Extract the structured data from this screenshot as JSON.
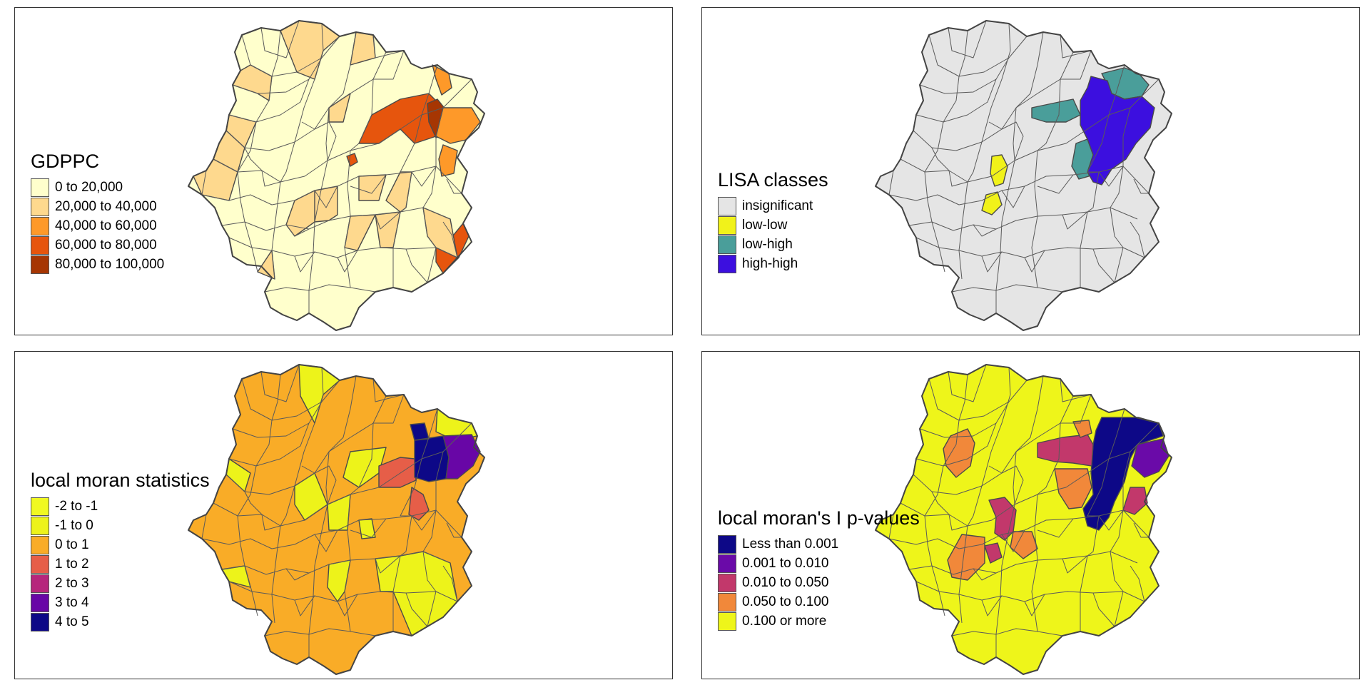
{
  "panels": [
    {
      "id": "gdppc",
      "legend_title": "GDPPC",
      "legend": [
        {
          "label": "0 to 20,000",
          "color": "#ffffcc"
        },
        {
          "label": "20,000 to 40,000",
          "color": "#fed98e"
        },
        {
          "label": "40,000 to 60,000",
          "color": "#fe9929"
        },
        {
          "label": "60,000 to 80,000",
          "color": "#e6550d"
        },
        {
          "label": "80,000 to 100,000",
          "color": "#a63603"
        }
      ],
      "base_color": "#ffffcc",
      "regions": [
        {
          "shape": "north_cluster",
          "color": "#fed98e"
        },
        {
          "shape": "west_patch",
          "color": "#fed98e"
        },
        {
          "shape": "center_patch",
          "color": "#fed98e"
        },
        {
          "shape": "east_band",
          "color": "#e6550d"
        },
        {
          "shape": "east_core",
          "color": "#a63603"
        },
        {
          "shape": "east_south",
          "color": "#fe9929"
        },
        {
          "shape": "east_tip",
          "color": "#fe9929"
        },
        {
          "shape": "southeast",
          "color": "#e6550d"
        },
        {
          "shape": "small_dot",
          "color": "#e6550d"
        },
        {
          "shape": "south_patch",
          "color": "#fed98e"
        }
      ]
    },
    {
      "id": "lisa",
      "legend_title": "LISA classes",
      "legend": [
        {
          "label": "insignificant",
          "color": "#e5e5e5"
        },
        {
          "label": "low-low",
          "color": "#f1f21a"
        },
        {
          "label": "low-high",
          "color": "#4a9e9a"
        },
        {
          "label": "high-high",
          "color": "#3c0fdf"
        }
      ],
      "base_color": "#e5e5e5",
      "regions": [
        {
          "shape": "lh_west",
          "color": "#4a9e9a"
        },
        {
          "shape": "lh_north",
          "color": "#4a9e9a"
        },
        {
          "shape": "lh_south",
          "color": "#4a9e9a"
        },
        {
          "shape": "hh_core",
          "color": "#3c0fdf"
        },
        {
          "shape": "ll_1",
          "color": "#f1f21a"
        },
        {
          "shape": "ll_2",
          "color": "#f1f21a"
        }
      ]
    },
    {
      "id": "moran",
      "legend_title": "local moran statistics",
      "legend": [
        {
          "label": "-2 to -1",
          "color": "#f0f921"
        },
        {
          "label": "-1 to 0",
          "color": "#edf31a"
        },
        {
          "label": "0 to 1",
          "color": "#f9ac27"
        },
        {
          "label": "1 to 2",
          "color": "#e65e48"
        },
        {
          "label": "2 to 3",
          "color": "#b6267c"
        },
        {
          "label": "3 to 4",
          "color": "#6806a6"
        },
        {
          "label": "4 to 5",
          "color": "#0d0887"
        }
      ],
      "base_color": "#f9ac27",
      "regions": [
        {
          "shape": "neg_north",
          "color": "#edf31a"
        },
        {
          "shape": "neg_ne",
          "color": "#edf31a"
        },
        {
          "shape": "neg_center",
          "color": "#edf31a"
        },
        {
          "shape": "neg_west",
          "color": "#edf31a"
        },
        {
          "shape": "neg_southeast",
          "color": "#edf31a"
        },
        {
          "shape": "neg_small",
          "color": "#edf31a"
        },
        {
          "shape": "m12_band",
          "color": "#e65e48"
        },
        {
          "shape": "m12_south",
          "color": "#e65e48"
        },
        {
          "shape": "m45_core",
          "color": "#0d0887"
        },
        {
          "shape": "m34_east",
          "color": "#6806a6"
        }
      ]
    },
    {
      "id": "pval",
      "legend_title": "local moran's I p-values",
      "legend": [
        {
          "label": "Less than 0.001",
          "color": "#0d0887"
        },
        {
          "label": "0.001 to 0.010",
          "color": "#6a0aa8"
        },
        {
          "label": "0.010 to 0.050",
          "color": "#c2386b"
        },
        {
          "label": "0.050 to 0.100",
          "color": "#f1883a"
        },
        {
          "label": "0.100 or more",
          "color": "#eef51a"
        }
      ],
      "base_color": "#eef51a",
      "regions": [
        {
          "shape": "p_core",
          "color": "#0d0887"
        },
        {
          "shape": "p_east",
          "color": "#6a0aa8"
        },
        {
          "shape": "p_west_band",
          "color": "#c2386b"
        },
        {
          "shape": "p_se",
          "color": "#c2386b"
        },
        {
          "shape": "p_nw",
          "color": "#f1883a"
        },
        {
          "shape": "p_north_small",
          "color": "#f1883a"
        },
        {
          "shape": "p_center",
          "color": "#f1883a"
        },
        {
          "shape": "p_sw_red",
          "color": "#c2386b"
        },
        {
          "shape": "p_sw_orange",
          "color": "#f1883a"
        },
        {
          "shape": "p_sw_orange2",
          "color": "#f1883a"
        }
      ]
    }
  ]
}
